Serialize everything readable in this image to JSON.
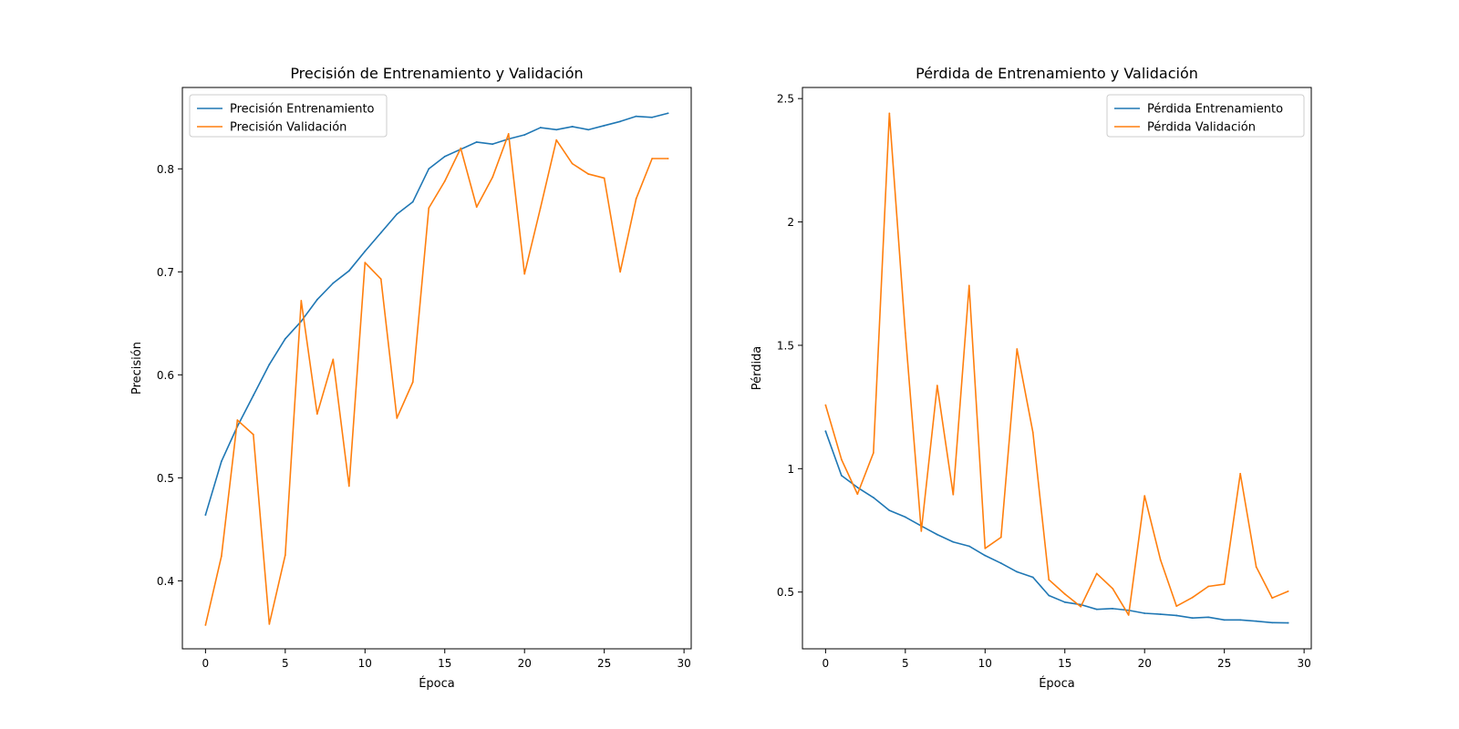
{
  "chart_data": [
    {
      "type": "line",
      "title": "Precisión de Entrenamiento y Validación",
      "xlabel": "Época",
      "ylabel": "Precisión",
      "xlim": [
        -1.45,
        30.45
      ],
      "ylim": [
        0.334,
        0.879
      ],
      "xticks": [
        0,
        5,
        10,
        15,
        20,
        25,
        30
      ],
      "yticks": [
        0.4,
        0.5,
        0.6,
        0.7,
        0.8
      ],
      "legend_position": "upper-left",
      "grid": false,
      "x": [
        0,
        1,
        2,
        3,
        4,
        5,
        6,
        7,
        8,
        9,
        10,
        11,
        12,
        13,
        14,
        15,
        16,
        17,
        18,
        19,
        20,
        21,
        22,
        23,
        24,
        25,
        26,
        27,
        28,
        29
      ],
      "series": [
        {
          "name": "Precisión Entrenamiento",
          "color": "#1f77b4",
          "values": [
            0.464,
            0.516,
            0.55,
            0.58,
            0.61,
            0.635,
            0.652,
            0.673,
            0.689,
            0.701,
            0.72,
            0.738,
            0.756,
            0.768,
            0.8,
            0.812,
            0.819,
            0.826,
            0.824,
            0.829,
            0.833,
            0.84,
            0.838,
            0.841,
            0.838,
            0.842,
            0.846,
            0.851,
            0.85,
            0.854
          ]
        },
        {
          "name": "Precisión Validación",
          "color": "#ff7f0e",
          "values": [
            0.357,
            0.424,
            0.556,
            0.542,
            0.358,
            0.425,
            0.672,
            0.562,
            0.615,
            0.492,
            0.709,
            0.693,
            0.558,
            0.593,
            0.762,
            0.788,
            0.82,
            0.763,
            0.792,
            0.834,
            0.698,
            0.762,
            0.828,
            0.805,
            0.795,
            0.791,
            0.7,
            0.771,
            0.81,
            0.81
          ]
        }
      ]
    },
    {
      "type": "line",
      "title": "Pérdida de Entrenamiento y Validación",
      "xlabel": "Época",
      "ylabel": "Pérdida",
      "xlim": [
        -1.45,
        30.45
      ],
      "ylim": [
        0.27,
        2.545
      ],
      "xticks": [
        0,
        5,
        10,
        15,
        20,
        25,
        30
      ],
      "yticks": [
        0.5,
        1.0,
        1.5,
        2.0,
        2.5
      ],
      "legend_position": "upper-right",
      "grid": false,
      "x": [
        0,
        1,
        2,
        3,
        4,
        5,
        6,
        7,
        8,
        9,
        10,
        11,
        12,
        13,
        14,
        15,
        16,
        17,
        18,
        19,
        20,
        21,
        22,
        23,
        24,
        25,
        26,
        27,
        28,
        29
      ],
      "series": [
        {
          "name": "Pérdida Entrenamiento",
          "color": "#1f77b4",
          "values": [
            1.152,
            0.972,
            0.924,
            0.883,
            0.831,
            0.804,
            0.768,
            0.733,
            0.703,
            0.686,
            0.648,
            0.617,
            0.582,
            0.56,
            0.486,
            0.459,
            0.449,
            0.43,
            0.433,
            0.426,
            0.414,
            0.41,
            0.405,
            0.395,
            0.398,
            0.387,
            0.387,
            0.382,
            0.376,
            0.375
          ]
        },
        {
          "name": "Pérdida Validación",
          "color": "#ff7f0e",
          "values": [
            1.258,
            1.037,
            0.897,
            1.064,
            2.44,
            1.55,
            0.747,
            1.337,
            0.895,
            1.742,
            0.677,
            0.722,
            1.485,
            1.147,
            0.55,
            0.492,
            0.441,
            0.575,
            0.514,
            0.407,
            0.89,
            0.63,
            0.443,
            0.478,
            0.523,
            0.532,
            0.98,
            0.602,
            0.476,
            0.503
          ]
        }
      ]
    }
  ]
}
